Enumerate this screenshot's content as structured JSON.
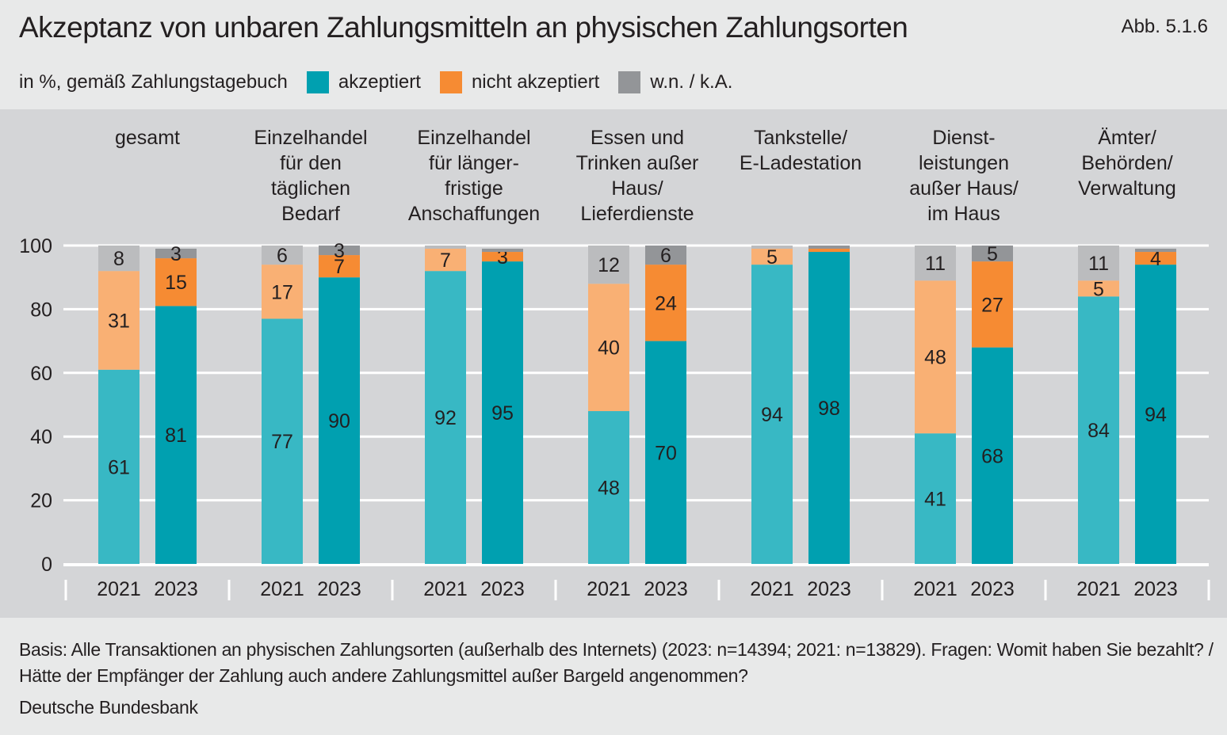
{
  "title": "Akzeptanz von unbaren Zahlungsmitteln an physischen Zahlungsorten",
  "figure_label": "Abb. 5.1.6",
  "footnote": "Basis: Alle Transaktionen an physischen Zahlungsorten (außerhalb des Internets) (2023: n=14394; 2021: n=13829). Fragen: Womit haben Sie bezahlt? / Hätte der Empfänger der Zahlung auch andere Zahlungsmittel außer Bargeld angenommen?",
  "source": "Deutsche Bundesbank",
  "colors": {
    "akzeptiert": {
      "2021": "#38b8c4",
      "2023": "#00a0b0"
    },
    "nicht akzeptiert": {
      "2021": "#f9b074",
      "2023": "#f68b33"
    },
    "w.n. / k.A.": {
      "2021": "#bbbcbe",
      "2023": "#939598"
    }
  },
  "chart_data": {
    "type": "stacked-bar",
    "subtitle": "in %, gemäß Zahlungstagebuch",
    "legend": [
      "akzeptiert",
      "nicht akzeptiert",
      "w.n. / k.A."
    ],
    "legend_placement": "top",
    "ylim": [
      0,
      100
    ],
    "yticks": [
      0,
      20,
      40,
      60,
      80,
      100
    ],
    "grid": true,
    "categories": [
      "gesamt",
      "Einzelhandel für den täglichen Bedarf",
      "Einzelhandel für länger-fristige Anschaffungen",
      "Essen und Trinken außer Haus/ Lieferdienste",
      "Tankstelle/ E-Ladestation",
      "Dienst-leistungen außer Haus/ im Haus",
      "Ämter/ Behörden/ Verwaltung"
    ],
    "category_lines": [
      [
        "gesamt"
      ],
      [
        "Einzelhandel",
        "für den",
        "täglichen",
        "Bedarf"
      ],
      [
        "Einzelhandel",
        "für länger-",
        "fristige",
        "Anschaffungen"
      ],
      [
        "Essen und",
        "Trinken außer",
        "Haus/",
        "Lieferdienste"
      ],
      [
        "Tankstelle/",
        "E-Ladestation"
      ],
      [
        "Dienst-",
        "leistungen",
        "außer Haus/",
        "im Haus"
      ],
      [
        "Ämter/",
        "Behörden/",
        "Verwaltung"
      ]
    ],
    "years": [
      "2021",
      "2023"
    ],
    "series": [
      {
        "name": "akzeptiert",
        "2021": [
          61,
          77,
          92,
          48,
          94,
          41,
          84
        ],
        "2023": [
          81,
          90,
          95,
          70,
          98,
          68,
          94
        ]
      },
      {
        "name": "nicht akzeptiert",
        "2021": [
          31,
          17,
          7,
          40,
          5,
          48,
          5
        ],
        "2023": [
          15,
          7,
          3,
          24,
          1,
          27,
          4
        ]
      },
      {
        "name": "w.n. / k.A.",
        "2021": [
          8,
          6,
          1,
          12,
          1,
          11,
          11
        ],
        "2023": [
          3,
          3,
          1,
          6,
          1,
          5,
          1
        ]
      }
    ],
    "labeled": {
      "akzeptiert": {
        "2021": [
          true,
          true,
          true,
          true,
          true,
          true,
          true
        ],
        "2023": [
          true,
          true,
          true,
          true,
          true,
          true,
          true
        ]
      },
      "nicht akzeptiert": {
        "2021": [
          true,
          true,
          true,
          true,
          true,
          true,
          true
        ],
        "2023": [
          true,
          true,
          true,
          true,
          false,
          true,
          true
        ]
      },
      "w.n. / k.A.": {
        "2021": [
          true,
          true,
          false,
          true,
          false,
          true,
          true
        ],
        "2023": [
          true,
          true,
          false,
          true,
          false,
          true,
          false
        ]
      }
    }
  }
}
